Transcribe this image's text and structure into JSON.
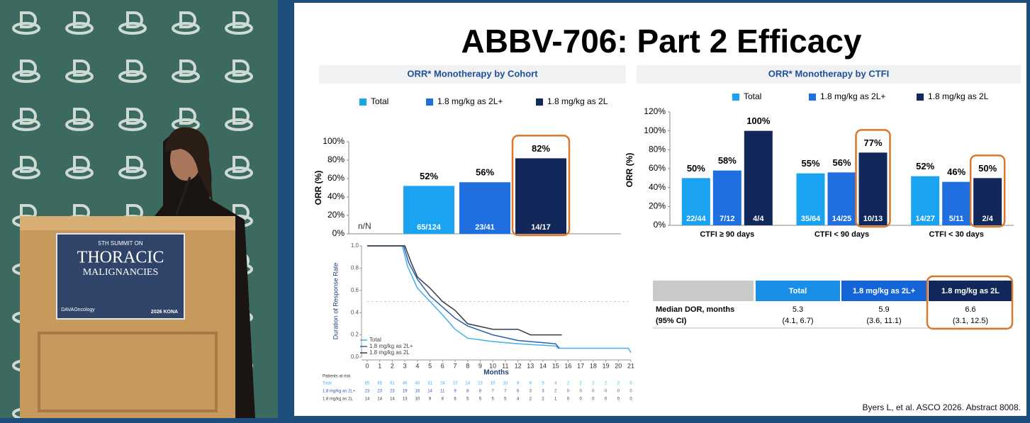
{
  "slide": {
    "title": "ABBV-706: Part 2 Efficacy",
    "citation": "Byers L, et al. ASCO 2026. Abstract 8008."
  },
  "podium": {
    "line1": "5TH SUMMIT ON",
    "line2": "THORACIC",
    "line3": "MALIGNANCIES",
    "logo": "DAVAOncology",
    "event": "2026 KONA"
  },
  "chart_data": [
    {
      "type": "bar",
      "title": "ORR* Monotherapy by Cohort",
      "ylabel": "ORR (%)",
      "n_header": "n/N",
      "categories": [
        null
      ],
      "series": [
        {
          "name": "Total",
          "color": "#1aa3f0",
          "values": [
            52
          ],
          "value_labels": [
            "52%"
          ],
          "n_labels": [
            "65/124"
          ]
        },
        {
          "name": "1.8 mg/kg as 2L+",
          "color": "#1f6fe0",
          "values": [
            56
          ],
          "value_labels": [
            "56%"
          ],
          "n_labels": [
            "23/41"
          ]
        },
        {
          "name": "1.8 mg/kg as 2L",
          "color": "#13285a",
          "values": [
            82
          ],
          "value_labels": [
            "82%"
          ],
          "n_labels": [
            "14/17"
          ]
        }
      ],
      "ylim": [
        0,
        100
      ],
      "yticks": [
        {
          "value": 0,
          "label": "0%"
        },
        {
          "value": 20,
          "label": "20%"
        },
        {
          "value": 40,
          "label": "40%"
        },
        {
          "value": 60,
          "label": "60%"
        },
        {
          "value": 80,
          "label": "80%"
        },
        {
          "value": 100,
          "label": "100%"
        }
      ]
    },
    {
      "type": "bar",
      "title": "ORR* Monotherapy by CTFI",
      "ylabel": "ORR (%)",
      "categories": [
        "CTFI ≥ 90 days",
        "CTFI < 90 days",
        "CTFI < 30 days"
      ],
      "series": [
        {
          "name": "Total",
          "color": "#1aa3f0",
          "values": [
            50,
            55,
            52
          ],
          "value_labels": [
            "50%",
            "55%",
            "52%"
          ],
          "n_labels": [
            "22/44",
            "35/64",
            "14/27"
          ]
        },
        {
          "name": "1.8 mg/kg as 2L+",
          "color": "#1f6fe0",
          "values": [
            58,
            56,
            46
          ],
          "value_labels": [
            "58%",
            "56%",
            "46%"
          ],
          "n_labels": [
            "7/12",
            "14/25",
            "5/11"
          ]
        },
        {
          "name": "1.8 mg/kg as 2L",
          "color": "#13285a",
          "values": [
            100,
            77,
            50
          ],
          "value_labels": [
            "100%",
            "77%",
            "50%"
          ],
          "n_labels": [
            "4/4",
            "10/13",
            "2/4"
          ]
        }
      ],
      "ylim": [
        0,
        120
      ],
      "yticks": [
        {
          "value": 0,
          "label": "0%"
        },
        {
          "value": 20,
          "label": "20%"
        },
        {
          "value": 40,
          "label": "40%"
        },
        {
          "value": 60,
          "label": "60%"
        },
        {
          "value": 80,
          "label": "80%"
        },
        {
          "value": 100,
          "label": "100%"
        },
        {
          "value": 120,
          "label": "120%"
        }
      ]
    },
    {
      "type": "line",
      "xlabel": "Months",
      "ylabel": "Duration of Response Rate",
      "series": [
        {
          "name": "Total",
          "color": "#3fb0ee",
          "x": [
            0,
            2.8,
            3.2,
            4,
            5,
            6,
            7,
            8,
            10,
            12,
            15,
            15.2,
            20.8,
            21
          ],
          "values": [
            1,
            1,
            0.82,
            0.62,
            0.5,
            0.38,
            0.25,
            0.17,
            0.14,
            0.12,
            0.1,
            0.08,
            0.08,
            0.04
          ]
        },
        {
          "name": "1.8 mg/kg as 2L+",
          "color": "#2a5fb0",
          "x": [
            0,
            2.9,
            3.3,
            4,
            5,
            6,
            7,
            8,
            10,
            12,
            15,
            15.3
          ],
          "values": [
            1,
            1,
            0.85,
            0.7,
            0.55,
            0.45,
            0.35,
            0.28,
            0.2,
            0.15,
            0.12,
            0.08
          ]
        },
        {
          "name": "1.8 mg/kg as 2L",
          "color": "#3a3a4a",
          "x": [
            0,
            3,
            3.5,
            4,
            5,
            6,
            7,
            8,
            10,
            12,
            13,
            15.5
          ],
          "values": [
            1,
            1,
            0.85,
            0.72,
            0.62,
            0.5,
            0.42,
            0.3,
            0.25,
            0.25,
            0.2,
            0.2
          ]
        }
      ],
      "xlim": [
        0,
        21
      ],
      "xticks": [
        0,
        1,
        2,
        3,
        4,
        5,
        6,
        7,
        8,
        9,
        10,
        11,
        12,
        13,
        14,
        15,
        16,
        17,
        18,
        19,
        20,
        21
      ],
      "ylim": [
        0,
        1
      ],
      "yticks": [
        {
          "value": 0,
          "label": "0.0"
        },
        0.2,
        0.4,
        0.6,
        0.8,
        {
          "value": 1,
          "label": "1.0"
        }
      ],
      "risk_table": {
        "title": "Patients at risk",
        "rows": [
          [
            65,
            65,
            61,
            46,
            40,
            31,
            24,
            17,
            14,
            13,
            10,
            10,
            9,
            6,
            5,
            4,
            2,
            2,
            2,
            2,
            2,
            0
          ],
          [
            23,
            23,
            23,
            19,
            16,
            14,
            11,
            9,
            8,
            8,
            7,
            7,
            6,
            3,
            3,
            2,
            0,
            0,
            0,
            0,
            0,
            0
          ],
          [
            14,
            14,
            14,
            13,
            10,
            9,
            8,
            6,
            5,
            5,
            5,
            5,
            4,
            2,
            2,
            1,
            0,
            0,
            0,
            0,
            0,
            0
          ]
        ]
      }
    }
  ],
  "table": {
    "header": [
      "Total",
      "1.8 mg/kg as 2L+",
      "1.8 mg/kg as 2L"
    ],
    "row_label": [
      "Median DOR, months",
      "(95% CI)"
    ],
    "medians": [
      5.3,
      5.9,
      6.6
    ],
    "ci": [
      "(4.1, 6.7)",
      "(3.6, 11.1)",
      "(3.1, 12.5)"
    ]
  }
}
